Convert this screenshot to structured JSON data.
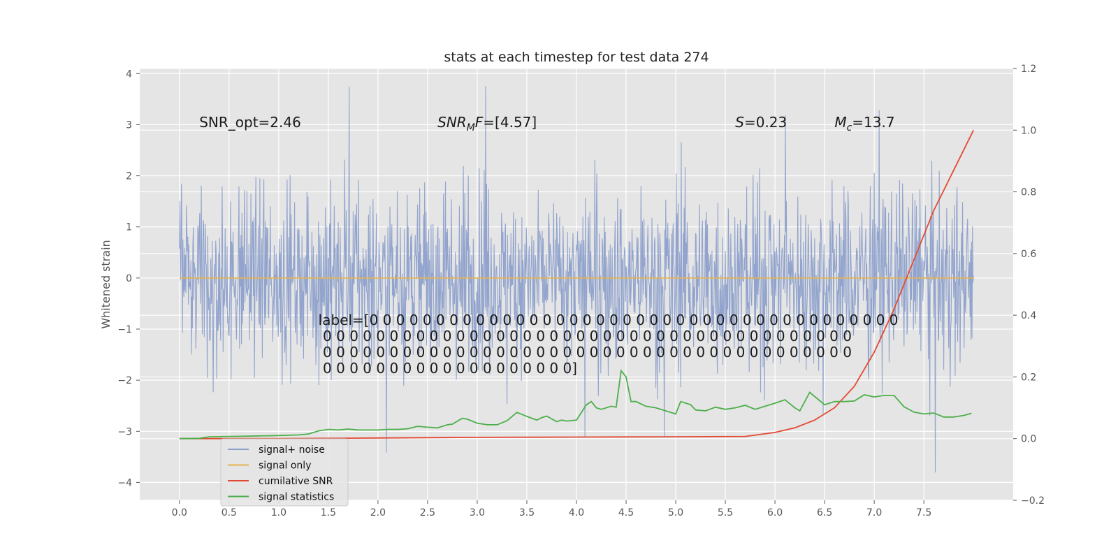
{
  "chart_data": {
    "type": "line",
    "title": "stats at each timestep for test data 274",
    "ylabel_left": "Whitened strain",
    "ylabel_right": "",
    "xlabel": "",
    "x_range": [
      -0.4,
      8.4
    ],
    "y_left_range": [
      -4.35,
      4.1
    ],
    "y_right_range": [
      -0.2,
      1.2
    ],
    "x_ticks": [
      "0.0",
      "0.5",
      "1.0",
      "1.5",
      "2.0",
      "2.5",
      "3.0",
      "3.5",
      "4.0",
      "4.5",
      "5.0",
      "5.5",
      "6.0",
      "6.5",
      "7.0",
      "7.5"
    ],
    "x_tick_values": [
      0.0,
      0.5,
      1.0,
      1.5,
      2.0,
      2.5,
      3.0,
      3.5,
      4.0,
      4.5,
      5.0,
      5.5,
      6.0,
      6.5,
      7.0,
      7.5
    ],
    "y_left_ticks": [
      "4",
      "3",
      "2",
      "1",
      "0",
      "−1",
      "−2",
      "−3",
      "−4"
    ],
    "y_left_tick_values": [
      4,
      3,
      2,
      1,
      0,
      -1,
      -2,
      -3,
      -4
    ],
    "y_right_ticks": [
      "1.2",
      "1.0",
      "0.8",
      "0.6",
      "0.4",
      "0.2",
      "0.0",
      "−0.2"
    ],
    "y_right_tick_values": [
      1.2,
      1.0,
      0.8,
      0.6,
      0.4,
      0.2,
      0.0,
      -0.2
    ],
    "grid": true,
    "legend_position": "lower-left",
    "series": [
      {
        "name": "signal+ noise",
        "axis": "left",
        "color": "#8da0cb",
        "style": "noise",
        "x_start": 0.0,
        "x_end": 8.0,
        "envelope_upper": 2.9,
        "envelope_lower": -2.9
      },
      {
        "name": "signal only",
        "axis": "left",
        "color": "#e5b34f",
        "x": [
          0.0,
          8.0
        ],
        "values": [
          0.0,
          0.0
        ]
      },
      {
        "name": "cumilative SNR",
        "axis": "right",
        "color": "#e24a33",
        "x": [
          0.0,
          1.0,
          2.0,
          3.0,
          4.0,
          5.0,
          5.7,
          6.0,
          6.2,
          6.4,
          6.6,
          6.8,
          7.0,
          7.2,
          7.4,
          7.6,
          7.8,
          8.0
        ],
        "values": [
          0.0,
          0.0,
          0.002,
          0.004,
          0.005,
          0.006,
          0.007,
          0.02,
          0.035,
          0.06,
          0.1,
          0.17,
          0.28,
          0.42,
          0.58,
          0.74,
          0.87,
          1.0
        ]
      },
      {
        "name": "signal statistics",
        "axis": "right",
        "color": "#4daf4a",
        "x": [
          0.0,
          0.2,
          0.3,
          0.5,
          0.7,
          1.0,
          1.2,
          1.3,
          1.4,
          1.5,
          1.6,
          1.7,
          1.8,
          1.9,
          2.0,
          2.1,
          2.2,
          2.3,
          2.4,
          2.5,
          2.6,
          2.7,
          2.75,
          2.85,
          2.9,
          3.0,
          3.1,
          3.2,
          3.3,
          3.4,
          3.5,
          3.6,
          3.65,
          3.7,
          3.8,
          3.85,
          3.9,
          4.0,
          4.1,
          4.15,
          4.2,
          4.25,
          4.35,
          4.4,
          4.45,
          4.5,
          4.55,
          4.6,
          4.7,
          4.8,
          4.9,
          5.0,
          5.05,
          5.15,
          5.2,
          5.3,
          5.4,
          5.5,
          5.6,
          5.7,
          5.8,
          5.9,
          6.0,
          6.1,
          6.2,
          6.25,
          6.35,
          6.5,
          6.6,
          6.7,
          6.8,
          6.9,
          7.0,
          7.1,
          7.2,
          7.3,
          7.4,
          7.5,
          7.6,
          7.7,
          7.8,
          7.9,
          7.98
        ],
        "values": [
          0.0,
          0.001,
          0.006,
          0.007,
          0.008,
          0.01,
          0.012,
          0.015,
          0.025,
          0.03,
          0.028,
          0.031,
          0.028,
          0.028,
          0.028,
          0.03,
          0.03,
          0.032,
          0.04,
          0.037,
          0.035,
          0.045,
          0.047,
          0.066,
          0.063,
          0.05,
          0.045,
          0.045,
          0.058,
          0.085,
          0.072,
          0.06,
          0.068,
          0.073,
          0.055,
          0.06,
          0.057,
          0.06,
          0.11,
          0.12,
          0.1,
          0.095,
          0.105,
          0.102,
          0.22,
          0.2,
          0.12,
          0.12,
          0.105,
          0.1,
          0.09,
          0.08,
          0.12,
          0.11,
          0.093,
          0.09,
          0.102,
          0.095,
          0.1,
          0.108,
          0.095,
          0.105,
          0.115,
          0.126,
          0.1,
          0.09,
          0.15,
          0.11,
          0.12,
          0.12,
          0.122,
          0.142,
          0.135,
          0.14,
          0.14,
          0.103,
          0.086,
          0.08,
          0.083,
          0.07,
          0.07,
          0.075,
          0.082
        ]
      }
    ],
    "annotations": [
      {
        "x": 0.2,
        "y": 2.95,
        "parts": [
          {
            "t": "SNR_opt=2.46",
            "style": "normal"
          }
        ]
      },
      {
        "x": 2.6,
        "y": 2.95,
        "parts": [
          {
            "t": "SNR",
            "style": "italic"
          },
          {
            "t": "M",
            "style": "italic-sub"
          },
          {
            "t": "F",
            "style": "italic"
          },
          {
            "t": "=[4.57]",
            "style": "normal"
          }
        ]
      },
      {
        "x": 5.6,
        "y": 2.95,
        "parts": [
          {
            "t": "S",
            "style": "italic"
          },
          {
            "t": "=0.23",
            "style": "normal"
          }
        ]
      },
      {
        "x": 6.6,
        "y": 2.95,
        "parts": [
          {
            "t": "M",
            "style": "italic"
          },
          {
            "t": "c",
            "style": "italic-sub"
          },
          {
            "t": "=13.7",
            "style": "normal"
          }
        ]
      }
    ],
    "label_block": {
      "x": 1.4,
      "y": -0.92,
      "lines": [
        "label=[0 0 0 0 0 0 0 0 0 0 0 0 0 0 0 0 0 0 0 0 0 0 0 0 0 0 0 0 0 0 0 0 0 0 0 0 0 0 0 0",
        " 0 0 0 0 0 0 0 0 0 0 0 0 0 0 0 0 0 0 0 0 0 0 0 0 0 0 0 0 0 0 0 0 0 0 0 0 0 0 0 0",
        " 0 0 0 0 0 0 0 0 0 0 0 0 0 0 0 0 0 0 0 0 0 0 0 0 0 0 0 0 0 0 0 0 0 0 0 0 0 0 0 0",
        " 0 0 0 0 0 0 0 0 0 0 0 0 0 0 0 0 0 0 0]"
      ]
    },
    "legend": [
      "signal+ noise",
      "signal only",
      "cumilative SNR",
      "signal statistics"
    ]
  }
}
